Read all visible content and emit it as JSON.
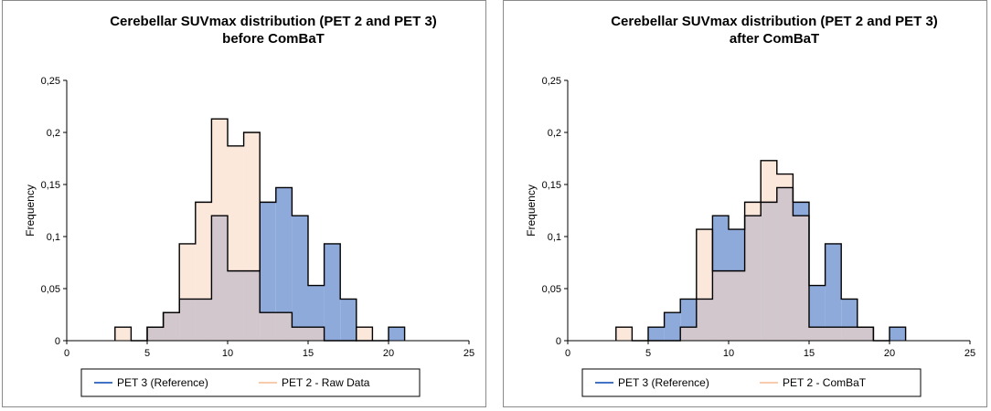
{
  "chart_data": [
    {
      "type": "histogram",
      "title": [
        "Cerebellar SUVmax distribution (PET 2 and PET 3)",
        "before ComBaT"
      ],
      "xlabel": "",
      "ylabel": "Frequency",
      "xlim": [
        0,
        25
      ],
      "ylim": [
        0,
        0.25
      ],
      "x_ticks": [
        0,
        5,
        10,
        15,
        20,
        25
      ],
      "x_tick_labels": [
        "0",
        "5",
        "10",
        "15",
        "20",
        "25"
      ],
      "y_ticks": [
        0,
        0.05,
        0.1,
        0.15,
        0.2,
        0.25
      ],
      "y_tick_labels": [
        "0",
        "0,05",
        "0,1",
        "0,15",
        "0,2",
        "0,25"
      ],
      "grid": false,
      "legend_position": "bottom",
      "bin_width": 1.0,
      "series": [
        {
          "name": "PET 3 (Reference)",
          "color": "#8eaadb",
          "bin_edges": [
            5.0,
            6.0,
            7.0,
            8.0,
            9.0,
            10.0,
            11.0,
            12.0,
            13.0,
            14.0,
            15.0,
            16.0,
            17.0,
            18.0,
            19.0,
            20.0,
            21.0
          ],
          "values": [
            0.013,
            0.027,
            0.04,
            0.04,
            0.12,
            0.067,
            0.067,
            0.133,
            0.147,
            0.12,
            0.053,
            0.093,
            0.04,
            0.0,
            0.0,
            0.013
          ]
        },
        {
          "name": "PET 2 - Raw Data",
          "color": "#fad9c5",
          "bin_edges": [
            3.0,
            4.0,
            5.0,
            6.0,
            7.0,
            8.0,
            9.0,
            10.0,
            11.0,
            12.0,
            13.0,
            14.0,
            15.0,
            16.0,
            17.0,
            18.0,
            19.0
          ],
          "values": [
            0.013,
            0.0,
            0.013,
            0.027,
            0.093,
            0.133,
            0.213,
            0.187,
            0.2,
            0.027,
            0.027,
            0.013,
            0.013,
            0.0,
            0.0,
            0.013
          ]
        }
      ]
    },
    {
      "type": "histogram",
      "title": [
        "Cerebellar SUVmax distribution (PET 2 and PET 3)",
        "after ComBaT"
      ],
      "xlabel": "",
      "ylabel": "Frequency",
      "xlim": [
        0,
        25
      ],
      "ylim": [
        0,
        0.25
      ],
      "x_ticks": [
        0,
        5,
        10,
        15,
        20,
        25
      ],
      "x_tick_labels": [
        "0",
        "5",
        "10",
        "15",
        "20",
        "25"
      ],
      "y_ticks": [
        0,
        0.05,
        0.1,
        0.15,
        0.2,
        0.25
      ],
      "y_tick_labels": [
        "0",
        "0,05",
        "0,1",
        "0,15",
        "0,2",
        "0,25"
      ],
      "grid": false,
      "legend_position": "bottom",
      "bin_width": 1.0,
      "series": [
        {
          "name": "PET 3 (Reference)",
          "color": "#8eaadb",
          "bin_edges": [
            5.0,
            6.0,
            7.0,
            8.0,
            9.0,
            10.0,
            11.0,
            12.0,
            13.0,
            14.0,
            15.0,
            16.0,
            17.0,
            18.0,
            19.0,
            20.0,
            21.0
          ],
          "values": [
            0.013,
            0.027,
            0.04,
            0.04,
            0.12,
            0.107,
            0.12,
            0.133,
            0.147,
            0.133,
            0.053,
            0.093,
            0.04,
            0.013,
            0.0,
            0.013
          ]
        },
        {
          "name": "PET 2 - ComBaT",
          "color": "#fad9c5",
          "bin_edges": [
            3.0,
            4.0,
            5.0,
            6.0,
            7.0,
            8.0,
            9.0,
            10.0,
            11.0,
            12.0,
            13.0,
            14.0,
            15.0,
            16.0,
            17.0,
            18.0,
            19.0
          ],
          "values": [
            0.013,
            0.0,
            0.0,
            0.0,
            0.013,
            0.107,
            0.067,
            0.067,
            0.133,
            0.173,
            0.16,
            0.12,
            0.013,
            0.013,
            0.013,
            0.013
          ]
        }
      ]
    }
  ]
}
